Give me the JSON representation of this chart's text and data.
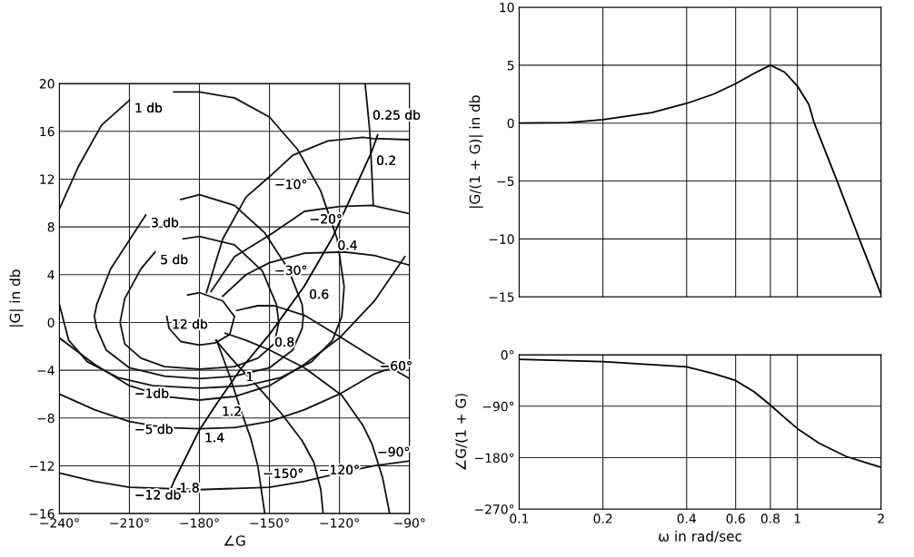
{
  "chart_data": [
    {
      "type": "line",
      "xlabel": "∠G",
      "ylabel": "|G| in db",
      "xlim": [
        -240,
        -90
      ],
      "ylim": [
        -16,
        20
      ],
      "xticks": [
        {
          "value": -240,
          "label": "−240°"
        },
        {
          "value": -210,
          "label": "−210°"
        },
        {
          "value": -180,
          "label": "−180°"
        },
        {
          "value": -150,
          "label": "−150°"
        },
        {
          "value": -120,
          "label": "−120°"
        },
        {
          "value": -90,
          "label": "−90°"
        }
      ],
      "yticks": [
        {
          "value": -16,
          "label": "−16"
        },
        {
          "value": -12,
          "label": "−12"
        },
        {
          "value": -8,
          "label": "−8"
        },
        {
          "value": -4,
          "label": "−4"
        },
        0,
        4,
        8,
        12,
        16,
        20
      ],
      "grid": true,
      "marker": "none",
      "line_style": "solid",
      "series": [
        {
          "color": "#111111",
          "x": [
            -240,
            -232,
            -222,
            -210
          ],
          "values": [
            9.5,
            13,
            16.5,
            18.6
          ]
        },
        {
          "color": "#111111",
          "x": [
            -191,
            -180,
            -165,
            -150,
            -138,
            -128,
            -121,
            -118,
            -119,
            -123,
            -132,
            -145,
            -160,
            -180,
            -200,
            -215,
            -228,
            -236,
            -240
          ],
          "values": [
            19.3,
            19.3,
            18.8,
            17.2,
            14.5,
            11,
            7,
            3,
            0.5,
            -1.5,
            -3.3,
            -4.6,
            -5.3,
            -5.5,
            -5.3,
            -4.6,
            -3.3,
            -1.5,
            1.5
          ]
        },
        {
          "color": "#111111",
          "x": [
            -188,
            -180,
            -165,
            -152,
            -142,
            -136,
            -135.5,
            -136,
            -140,
            -150,
            -165,
            -180,
            -195,
            -210,
            -220,
            -224,
            -225,
            -224,
            -218,
            -208,
            -203
          ],
          "values": [
            10.3,
            10.7,
            9.8,
            7.5,
            4.5,
            1.5,
            0.5,
            -0.5,
            -2.3,
            -3.8,
            -4.5,
            -4.7,
            -4.5,
            -3.8,
            -2.3,
            -0.5,
            0.5,
            1.5,
            4.5,
            7.5,
            9
          ]
        },
        {
          "color": "#111111",
          "x": [
            -187,
            -180,
            -165,
            -153,
            -147,
            -146,
            -148,
            -155,
            -165,
            -180,
            -195,
            -205,
            -212,
            -214,
            -212,
            -205,
            -199
          ],
          "values": [
            7,
            7.2,
            6.5,
            4.3,
            1.5,
            0,
            -1.8,
            -3,
            -3.7,
            -3.9,
            -3.7,
            -3,
            -1.8,
            0,
            2,
            4.5,
            5.9
          ]
        },
        {
          "color": "#111111",
          "x": [
            -185,
            -180,
            -170,
            -165,
            -167,
            -173,
            -180,
            -188,
            -193,
            -194
          ],
          "values": [
            2.3,
            2.5,
            1.8,
            0.5,
            -1,
            -1.7,
            -1.9,
            -1.6,
            -0.5,
            0.5
          ]
        },
        {
          "color": "#111111",
          "x": [
            -109,
            -108,
            -107,
            -106,
            -105.5
          ],
          "values": [
            20,
            18,
            16,
            12,
            9.8
          ]
        },
        {
          "color": "#111111",
          "x": [
            -240,
            -225,
            -210,
            -195,
            -180,
            -165,
            -150,
            -135,
            -120,
            -105,
            -92
          ],
          "values": [
            -1.3,
            -3.5,
            -5.3,
            -6.2,
            -6.5,
            -6.2,
            -5.3,
            -3.5,
            -1.3,
            1.8,
            5.5
          ]
        },
        {
          "color": "#111111",
          "x": [
            -240,
            -225,
            -210,
            -195,
            -180,
            -165,
            -150,
            -135,
            -120,
            -105,
            -90
          ],
          "values": [
            -6,
            -7.3,
            -8.3,
            -8.8,
            -8.9,
            -8.8,
            -8.3,
            -7.3,
            -6,
            -4.3,
            -3.3
          ]
        },
        {
          "color": "#111111",
          "x": [
            -240,
            -225,
            -210,
            -180,
            -150,
            -135,
            -120,
            -105,
            -90
          ],
          "values": [
            -12.6,
            -13.3,
            -13.8,
            -14,
            -13.8,
            -13.3,
            -12.6,
            -12,
            -11.6
          ]
        },
        {
          "color": "#111111",
          "x": [
            -177,
            -170,
            -160,
            -150,
            -140,
            -125,
            -110,
            -106,
            -90
          ],
          "values": [
            2.5,
            7,
            10.5,
            12.2,
            14,
            15.2,
            15.5,
            15.4,
            15.3
          ]
        },
        {
          "color": "#111111",
          "x": [
            -175,
            -165,
            -150,
            -135,
            -120,
            -106,
            -90
          ],
          "values": [
            2.6,
            5.5,
            7.3,
            9.3,
            9.7,
            9.8,
            9.1
          ]
        },
        {
          "color": "#111111",
          "x": [
            -170,
            -160,
            -150,
            -135,
            -118,
            -105,
            -90
          ],
          "values": [
            2.2,
            4,
            5,
            5.8,
            5.9,
            5.6,
            4.8
          ]
        },
        {
          "color": "#111111",
          "x": [
            -164,
            -155,
            -148,
            -135,
            -119,
            -105,
            -90
          ],
          "values": [
            1,
            1.4,
            1.4,
            0.6,
            -1.3,
            -3,
            -4.7
          ]
        },
        {
          "color": "#111111",
          "x": [
            -169,
            -160,
            -150,
            -135,
            -119,
            -110,
            -106,
            -101.5,
            -98.5
          ],
          "values": [
            -0.9,
            -1.5,
            -2.3,
            -3.8,
            -6.1,
            -8.6,
            -10.2,
            -13,
            -16
          ]
        },
        {
          "color": "#111111",
          "x": [
            -173,
            -165,
            -154,
            -145,
            -136,
            -131,
            -128,
            -127
          ],
          "values": [
            -1.5,
            -3.3,
            -5.6,
            -7.6,
            -9.9,
            -11.7,
            -14,
            -16
          ]
        },
        {
          "color": "#111111",
          "x": [
            -172.6,
            -167,
            -162,
            -158,
            -155,
            -152
          ],
          "values": [
            -1.5,
            -4.5,
            -7.5,
            -9.7,
            -12,
            -16
          ]
        },
        {
          "color": "#000000",
          "x": [
            -103.6,
            -106.4,
            -123,
            -135.2,
            -150,
            -162.3,
            -172.6,
            -180,
            -190.7,
            -193.5
          ],
          "values": [
            15.7,
            14.2,
            7.1,
            3,
            -1,
            -3.9,
            -6.8,
            -9,
            -13.2,
            -14.5
          ]
        }
      ],
      "annotations": [
        {
          "text": "1 db",
          "x": -210,
          "y": 18.6
        },
        {
          "text": "0.25 db",
          "x": -108,
          "y": 18
        },
        {
          "text": "−10°",
          "x": -150,
          "y": 12.2
        },
        {
          "text": "0.2",
          "x": -106.4,
          "y": 14.2
        },
        {
          "text": "3 db",
          "x": -203,
          "y": 9
        },
        {
          "text": "−20°",
          "x": -135,
          "y": 9.3
        },
        {
          "text": "5 db",
          "x": -199,
          "y": 5.9
        },
        {
          "text": "−30°",
          "x": -150,
          "y": 5
        },
        {
          "text": "0.4",
          "x": -123,
          "y": 7.1
        },
        {
          "text": "0.6",
          "x": -135.2,
          "y": 3
        },
        {
          "text": "12 db",
          "x": -194,
          "y": 0.5
        },
        {
          "text": "0.8",
          "x": -150,
          "y": -1
        },
        {
          "text": "−60°",
          "x": -105,
          "y": -3
        },
        {
          "text": "1",
          "x": -162.3,
          "y": -3.9
        },
        {
          "text": "−1db",
          "x": -210,
          "y": -5.3
        },
        {
          "text": "1.2",
          "x": -172.6,
          "y": -6.8
        },
        {
          "text": "−5 db",
          "x": -210,
          "y": -8.3
        },
        {
          "text": "1.4",
          "x": -180,
          "y": -9
        },
        {
          "text": "−150°",
          "x": -155,
          "y": -12
        },
        {
          "text": "−120°",
          "x": -131,
          "y": -11.7
        },
        {
          "text": "−90°",
          "x": -106,
          "y": -10.2
        },
        {
          "text": "−12 db",
          "x": -210,
          "y": -13.8
        },
        {
          "text": "1.8",
          "x": -190.7,
          "y": -13.2
        }
      ]
    },
    {
      "type": "line",
      "ylabel": "|G/(1 + G)| in db",
      "log": "x",
      "xlim": [
        0.1,
        2
      ],
      "ylim": [
        -15,
        10
      ],
      "xticks": [
        0.1,
        0.2,
        0.4,
        0.6,
        0.8,
        1,
        2
      ],
      "yticks": [
        {
          "value": -15,
          "label": "−15"
        },
        {
          "value": -10,
          "label": "−10"
        },
        {
          "value": -5,
          "label": "−5"
        },
        0,
        5,
        10
      ],
      "tick_labels": "y",
      "grid": true,
      "marker": "none",
      "line_style": "solid",
      "series": [
        {
          "color": "#000000",
          "x": [
            0.1,
            0.15,
            0.2,
            0.3,
            0.4,
            0.5,
            0.6,
            0.7,
            0.8,
            0.9,
            1,
            1.1,
            1.15,
            1.39,
            1.67,
            2
          ],
          "values": [
            0,
            0.05,
            0.3,
            0.9,
            1.7,
            2.5,
            3.4,
            4.3,
            5,
            4.4,
            3.2,
            1.6,
            0,
            -5,
            -10,
            -14.8
          ]
        }
      ]
    },
    {
      "type": "line",
      "ylabel": "∠G/(1 + G)",
      "xlabel": "ω in rad/sec",
      "log": "x",
      "xlim": [
        0.1,
        2
      ],
      "ylim": [
        -270,
        0
      ],
      "xticks": [
        0.1,
        0.2,
        0.4,
        0.6,
        0.8,
        1,
        2
      ],
      "yticks": [
        {
          "value": -270,
          "label": "−270°"
        },
        {
          "value": -180,
          "label": "−180°"
        },
        {
          "value": -90,
          "label": "−90°"
        },
        {
          "value": 0,
          "label": "0°"
        }
      ],
      "grid": true,
      "marker": "none",
      "line_style": "solid",
      "series": [
        {
          "color": "#000000",
          "x": [
            0.1,
            0.2,
            0.4,
            0.5,
            0.6,
            0.7,
            0.8,
            0.9,
            1,
            1.2,
            1.5,
            2
          ],
          "values": [
            -8,
            -12,
            -21,
            -33,
            -45,
            -65,
            -88,
            -110,
            -129,
            -155,
            -178,
            -197
          ]
        }
      ]
    }
  ]
}
